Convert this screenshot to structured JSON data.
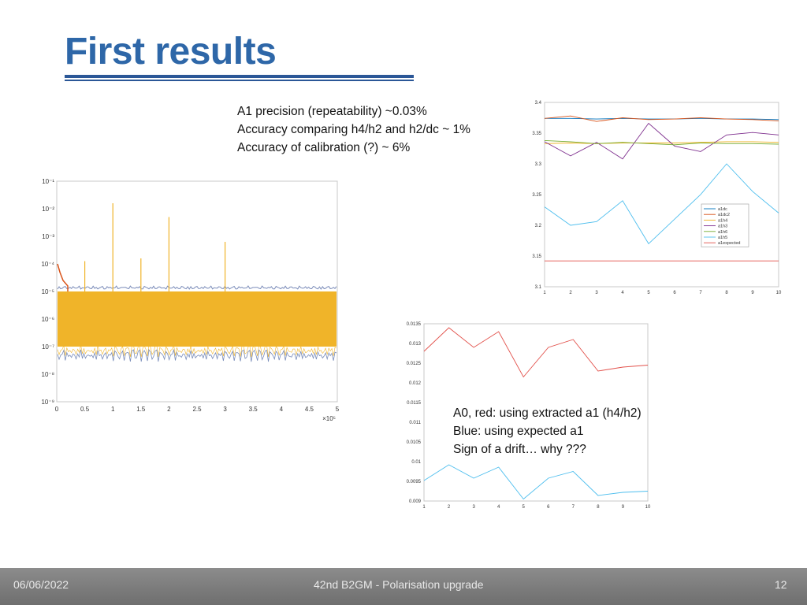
{
  "slide": {
    "title": "First results",
    "notes_top": [
      "A1 precision (repeatability) ~0.03%",
      "Accuracy comparing h4/h2 and h2/dc ~ 1%",
      "Accuracy of calibration (?) ~ 6%"
    ],
    "notes_bottom": [
      "A0, red: using extracted a1 (h4/h2)",
      "Blue: using expected a1",
      "Sign of a drift… why ???"
    ]
  },
  "footer": {
    "date": "06/06/2022",
    "event": "42nd B2GM - Polarisation upgrade",
    "page": "12"
  },
  "chart_data": [
    {
      "type": "line",
      "description_scale": "log-y",
      "x_ticks": [
        "0",
        "0.5",
        "1",
        "1.5",
        "2",
        "2.5",
        "3",
        "3.5",
        "4",
        "4.5",
        "5"
      ],
      "x_multiplier": "×10⁵",
      "y_ticks": [
        "10⁻⁹",
        "10⁻⁸",
        "10⁻⁷",
        "10⁻⁶",
        "10⁻⁵",
        "10⁻⁴",
        "10⁻³",
        "10⁻²",
        "10⁻¹"
      ],
      "xlim": [
        0,
        500000
      ],
      "ylim_log10": [
        -9,
        -1
      ],
      "band_log10": [
        -7,
        -5
      ],
      "spikes": [
        {
          "x": 50000,
          "y_log10": -3.9
        },
        {
          "x": 100000,
          "y_log10": -1.8
        },
        {
          "x": 150000,
          "y_log10": -3.8
        },
        {
          "x": 200000,
          "y_log10": -2.3
        },
        {
          "x": 300000,
          "y_log10": -3.2
        }
      ],
      "colors": {
        "main": "#f0b429",
        "accent": "#d95319",
        "blue": "#0072bd"
      }
    },
    {
      "type": "line",
      "x": [
        1,
        2,
        3,
        4,
        5,
        6,
        7,
        8,
        9,
        10
      ],
      "ylim": [
        3.1,
        3.4
      ],
      "x_ticks": [
        "1",
        "2",
        "3",
        "4",
        "5",
        "6",
        "7",
        "8",
        "9",
        "10"
      ],
      "y_ticks": [
        "3.1",
        "3.15",
        "3.2",
        "3.25",
        "3.3",
        "3.35",
        "3.4"
      ],
      "legend_position": "right",
      "series": [
        {
          "name": "a1dc",
          "color": "#0072bd",
          "values": [
            3.374,
            3.374,
            3.373,
            3.374,
            3.373,
            3.373,
            3.374,
            3.373,
            3.373,
            3.372
          ]
        },
        {
          "name": "a1dc2",
          "color": "#d95319",
          "values": [
            3.374,
            3.378,
            3.369,
            3.375,
            3.372,
            3.373,
            3.375,
            3.373,
            3.372,
            3.37
          ]
        },
        {
          "name": "a1h4",
          "color": "#edb120",
          "values": [
            3.333,
            3.334,
            3.333,
            3.334,
            3.334,
            3.334,
            3.335,
            3.336,
            3.336,
            3.335
          ]
        },
        {
          "name": "a1h3",
          "color": "#7e2f8e",
          "values": [
            3.336,
            3.313,
            3.335,
            3.308,
            3.366,
            3.329,
            3.32,
            3.347,
            3.351,
            3.347
          ]
        },
        {
          "name": "a1h6",
          "color": "#77ac30",
          "values": [
            3.338,
            3.336,
            3.333,
            3.335,
            3.333,
            3.331,
            3.334,
            3.333,
            3.333,
            3.332
          ]
        },
        {
          "name": "a1h5",
          "color": "#4dbeee",
          "values": [
            3.23,
            3.2,
            3.206,
            3.24,
            3.17,
            3.21,
            3.25,
            3.3,
            3.255,
            3.22
          ]
        },
        {
          "name": "a1expected",
          "color": "#e2504a",
          "values": [
            3.142,
            3.142,
            3.142,
            3.142,
            3.142,
            3.142,
            3.142,
            3.142,
            3.142,
            3.142
          ]
        }
      ]
    },
    {
      "type": "line",
      "x": [
        1,
        2,
        3,
        4,
        5,
        6,
        7,
        8,
        9,
        10
      ],
      "ylim": [
        0.009,
        0.0135
      ],
      "x_ticks": [
        "1",
        "2",
        "3",
        "4",
        "5",
        "6",
        "7",
        "8",
        "9",
        "10"
      ],
      "y_ticks": [
        "0.009",
        "0.0095",
        "0.01",
        "0.0105",
        "0.011",
        "0.0115",
        "0.012",
        "0.0125",
        "0.013",
        "0.0135"
      ],
      "series": [
        {
          "color": "#e2504a",
          "values": [
            0.0128,
            0.0134,
            0.0129,
            0.0133,
            0.01215,
            0.0129,
            0.0131,
            0.0123,
            0.0124,
            0.01245
          ]
        },
        {
          "color": "#4dbeee",
          "values": [
            0.00952,
            0.00992,
            0.00958,
            0.00986,
            0.00905,
            0.00958,
            0.00975,
            0.00914,
            0.00922,
            0.00925
          ]
        }
      ]
    }
  ]
}
